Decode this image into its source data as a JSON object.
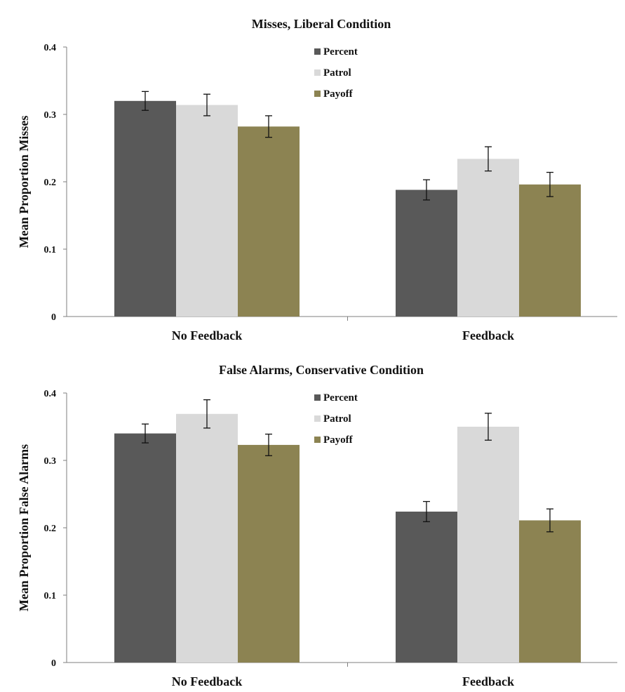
{
  "chart_data": [
    {
      "type": "bar",
      "title": "Misses, Liberal Condition",
      "xlabel": "",
      "ylabel": "Mean Proportion Misses",
      "ylim": [
        0,
        0.4
      ],
      "yticks": [
        "0",
        "0.1",
        "0.2",
        "0.3",
        "0.4"
      ],
      "categories": [
        "No Feedback",
        "Feedback"
      ],
      "series": [
        {
          "name": "Percent",
          "color": "#595959",
          "values": [
            0.32,
            0.188
          ],
          "error": [
            0.014,
            0.015
          ]
        },
        {
          "name": "Patrol",
          "color": "#d9d9d9",
          "values": [
            0.314,
            0.234
          ],
          "error": [
            0.016,
            0.018
          ]
        },
        {
          "name": "Payoff",
          "color": "#8c8352",
          "values": [
            0.282,
            0.196
          ],
          "error": [
            0.016,
            0.018
          ]
        }
      ],
      "legend_position": "top-center",
      "grid": false
    },
    {
      "type": "bar",
      "title": "False Alarms, Conservative Condition",
      "xlabel": "",
      "ylabel": "Mean Proportion False Alarms",
      "ylim": [
        0,
        0.4
      ],
      "yticks": [
        "0",
        "0.1",
        "0.2",
        "0.3",
        "0.4"
      ],
      "categories": [
        "No Feedback",
        "Feedback"
      ],
      "series": [
        {
          "name": "Percent",
          "color": "#595959",
          "values": [
            0.34,
            0.224
          ],
          "error": [
            0.014,
            0.015
          ]
        },
        {
          "name": "Patrol",
          "color": "#d9d9d9",
          "values": [
            0.369,
            0.35
          ],
          "error": [
            0.021,
            0.02
          ]
        },
        {
          "name": "Payoff",
          "color": "#8c8352",
          "values": [
            0.323,
            0.211
          ],
          "error": [
            0.016,
            0.017
          ]
        }
      ],
      "legend_position": "top-center",
      "grid": false
    }
  ]
}
